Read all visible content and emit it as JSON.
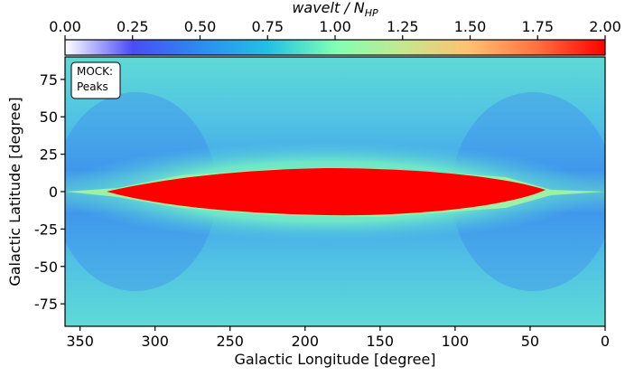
{
  "chart_data": {
    "type": "heatmap",
    "x_label": "Galactic Longitude [degree]",
    "y_label": "Galactic Latitude [degree]",
    "xlim": [
      360,
      0
    ],
    "xticks": [
      350,
      300,
      250,
      200,
      150,
      100,
      50,
      0
    ],
    "ylim": [
      -90,
      90
    ],
    "yticks": [
      -75,
      -50,
      -25,
      0,
      25,
      50,
      75
    ],
    "annotation": [
      "MOCK:",
      "Peaks"
    ],
    "colorbar": {
      "label": "wavelt / N",
      "label_sub": "HP",
      "lim": [
        0,
        2
      ],
      "ticks": [
        {
          "value": 0,
          "label": "0.00"
        },
        {
          "value": 0.25,
          "label": "0.25"
        },
        {
          "value": 0.5,
          "label": "0.50"
        },
        {
          "value": 0.75,
          "label": "0.75"
        },
        {
          "value": 1,
          "label": "1.00"
        },
        {
          "value": 1.25,
          "label": "1.25"
        },
        {
          "value": 1.5,
          "label": "1.50"
        },
        {
          "value": 1.75,
          "label": "1.75"
        },
        {
          "value": 2,
          "label": "2.00"
        }
      ],
      "colors": [
        "#ffffff",
        "#4b4cf5",
        "#2c8cf0",
        "#22c0e4",
        "#80ffb4",
        "#c4e890",
        "#ffc070",
        "#ff7040",
        "#ff0000"
      ]
    }
  }
}
